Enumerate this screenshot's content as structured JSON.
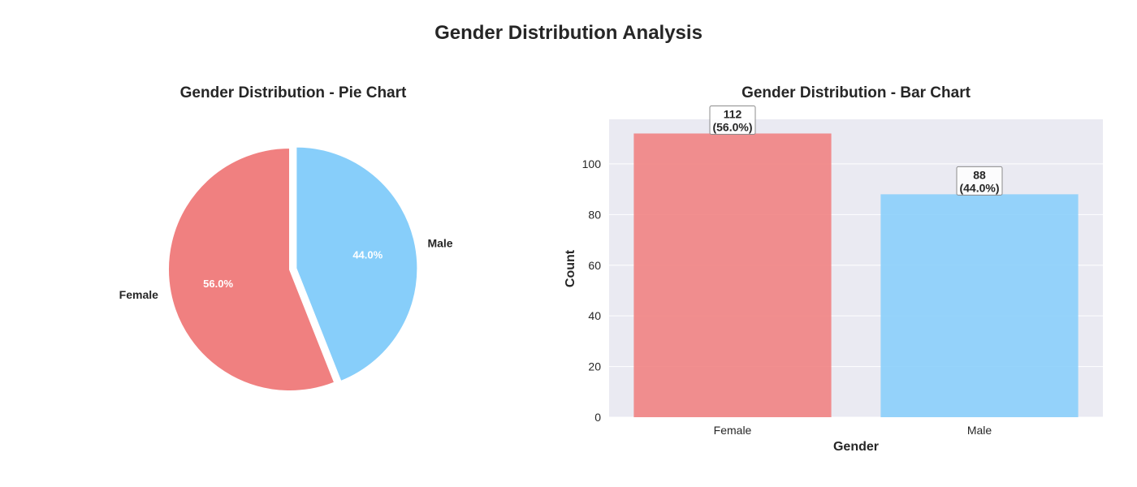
{
  "figure": {
    "title": "Gender Distribution Analysis"
  },
  "chart_data": [
    {
      "type": "pie",
      "title": "Gender Distribution - Pie Chart",
      "labels": [
        "Female",
        "Male"
      ],
      "values": [
        112,
        88
      ],
      "percent_labels": [
        "56.0%",
        "44.0%"
      ],
      "colors": [
        "#f08080",
        "#87cefa"
      ],
      "start_angle_deg": 90,
      "explode": [
        0,
        0.05
      ]
    },
    {
      "type": "bar",
      "title": "Gender Distribution - Bar Chart",
      "categories": [
        "Female",
        "Male"
      ],
      "values": [
        112,
        88
      ],
      "value_labels": [
        "112",
        "88"
      ],
      "percent_labels": [
        "(56.0%)",
        "(44.0%)"
      ],
      "colors": [
        "#f08080",
        "#87cefa"
      ],
      "xlabel": "Gender",
      "ylabel": "Count",
      "ylim": [
        0,
        117.6
      ],
      "yticks": [
        0,
        20,
        40,
        60,
        80,
        100
      ],
      "grid": true,
      "background": "#eaeaf2"
    }
  ]
}
